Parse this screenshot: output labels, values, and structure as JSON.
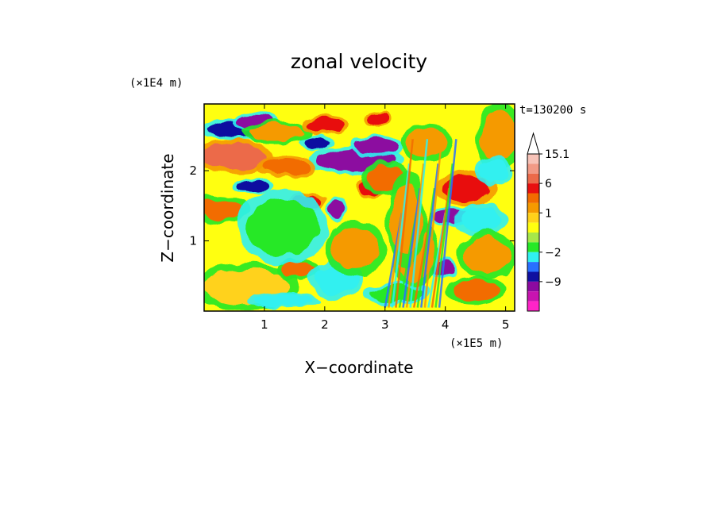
{
  "chart_data": {
    "type": "heatmap",
    "title": "zonal velocity",
    "xlabel": "X−coordinate",
    "ylabel": "Z−coordinate",
    "x_scale_note": "(×1E5 m)",
    "y_scale_note": "(×1E4 m)",
    "time_label": "t=130200 s",
    "xlim": [
      0,
      5.15
    ],
    "ylim": [
      0,
      2.95
    ],
    "x_ticks": [
      1,
      2,
      3,
      4,
      5
    ],
    "y_ticks": [
      1,
      2
    ],
    "colorbar": {
      "labels": [
        "15.1",
        "6",
        "1",
        "−2",
        "−9"
      ],
      "levels_top_to_bottom": [
        15.1,
        12,
        9,
        6,
        4,
        2,
        1,
        0.5,
        -0.5,
        -1,
        -2,
        -4,
        -6,
        -9,
        -12,
        -15
      ],
      "colors_top_to_bottom": [
        "#f7c3b8",
        "#f29a86",
        "#ec6a4a",
        "#e81010",
        "#f26c00",
        "#f59a00",
        "#ffd21a",
        "#ffff10",
        "#a6e84a",
        "#26e826",
        "#30f0f0",
        "#2870ff",
        "#1010a0",
        "#8c0aa0",
        "#c814b0",
        "#ff24c8"
      ]
    },
    "regions_desc": "zonal velocity field, warm = positive, cool = negative",
    "blobs": [
      {
        "x": 0.6,
        "z": 2.6,
        "rx": 0.55,
        "rz": 0.12,
        "v": -7
      },
      {
        "x": 0.85,
        "z": 2.7,
        "rx": 0.3,
        "rz": 0.1,
        "v": -9
      },
      {
        "x": 0.5,
        "z": 2.2,
        "rx": 0.55,
        "rz": 0.18,
        "v": 7
      },
      {
        "x": 0.8,
        "z": 1.78,
        "rx": 0.28,
        "rz": 0.08,
        "v": -7
      },
      {
        "x": 2.5,
        "z": 2.15,
        "rx": 0.65,
        "rz": 0.14,
        "v": -9
      },
      {
        "x": 2.85,
        "z": 2.35,
        "rx": 0.35,
        "rz": 0.12,
        "v": -9
      },
      {
        "x": 1.85,
        "z": 2.4,
        "rx": 0.22,
        "rz": 0.09,
        "v": -7
      },
      {
        "x": 1.35,
        "z": 2.05,
        "rx": 0.4,
        "rz": 0.12,
        "v": 4
      },
      {
        "x": 1.2,
        "z": 2.55,
        "rx": 0.45,
        "rz": 0.12,
        "v": 2
      },
      {
        "x": 2.0,
        "z": 2.65,
        "rx": 0.3,
        "rz": 0.1,
        "v": 5
      },
      {
        "x": 2.9,
        "z": 2.75,
        "rx": 0.2,
        "rz": 0.08,
        "v": 6
      },
      {
        "x": 1.7,
        "z": 1.55,
        "rx": 0.25,
        "rz": 0.1,
        "v": 6
      },
      {
        "x": 2.2,
        "z": 1.45,
        "rx": 0.13,
        "rz": 0.12,
        "v": -9
      },
      {
        "x": 2.75,
        "z": 1.75,
        "rx": 0.18,
        "rz": 0.12,
        "v": 5
      },
      {
        "x": 3.0,
        "z": 1.9,
        "rx": 0.3,
        "rz": 0.18,
        "v": 3
      },
      {
        "x": 4.1,
        "z": 1.35,
        "rx": 0.32,
        "rz": 0.1,
        "v": -9
      },
      {
        "x": 4.35,
        "z": 1.75,
        "rx": 0.4,
        "rz": 0.18,
        "v": 6
      },
      {
        "x": 4.6,
        "z": 1.3,
        "rx": 0.35,
        "rz": 0.18,
        "v": -2
      },
      {
        "x": 4.7,
        "z": 0.8,
        "rx": 0.4,
        "rz": 0.25,
        "v": 2
      },
      {
        "x": 3.95,
        "z": 0.6,
        "rx": 0.18,
        "rz": 0.1,
        "v": -9
      },
      {
        "x": 3.5,
        "z": 0.8,
        "rx": 0.3,
        "rz": 0.35,
        "v": 2
      },
      {
        "x": 0.7,
        "z": 0.35,
        "rx": 0.7,
        "rz": 0.25,
        "v": 1
      },
      {
        "x": 1.3,
        "z": 0.15,
        "rx": 0.5,
        "rz": 0.08,
        "v": -2
      },
      {
        "x": 1.55,
        "z": 0.58,
        "rx": 0.3,
        "rz": 0.12,
        "v": 3
      },
      {
        "x": 2.2,
        "z": 0.45,
        "rx": 0.35,
        "rz": 0.2,
        "v": -2
      },
      {
        "x": 2.5,
        "z": 0.9,
        "rx": 0.4,
        "rz": 0.3,
        "v": 2
      },
      {
        "x": 3.2,
        "z": 0.25,
        "rx": 0.45,
        "rz": 0.12,
        "v": -1
      },
      {
        "x": 4.5,
        "z": 0.3,
        "rx": 0.4,
        "rz": 0.15,
        "v": 3
      },
      {
        "x": 4.9,
        "z": 2.5,
        "rx": 0.3,
        "rz": 0.35,
        "v": 2
      },
      {
        "x": 4.8,
        "z": 2.0,
        "rx": 0.25,
        "rz": 0.15,
        "v": -2
      },
      {
        "x": 3.7,
        "z": 2.4,
        "rx": 0.35,
        "rz": 0.2,
        "v": 2
      },
      {
        "x": 0.3,
        "z": 1.45,
        "rx": 0.35,
        "rz": 0.15,
        "v": 3
      },
      {
        "x": 1.3,
        "z": 1.2,
        "rx": 0.6,
        "rz": 0.4,
        "v": -1
      },
      {
        "x": 3.35,
        "z": 1.3,
        "rx": 0.25,
        "rz": 0.5,
        "v": 2
      }
    ]
  }
}
